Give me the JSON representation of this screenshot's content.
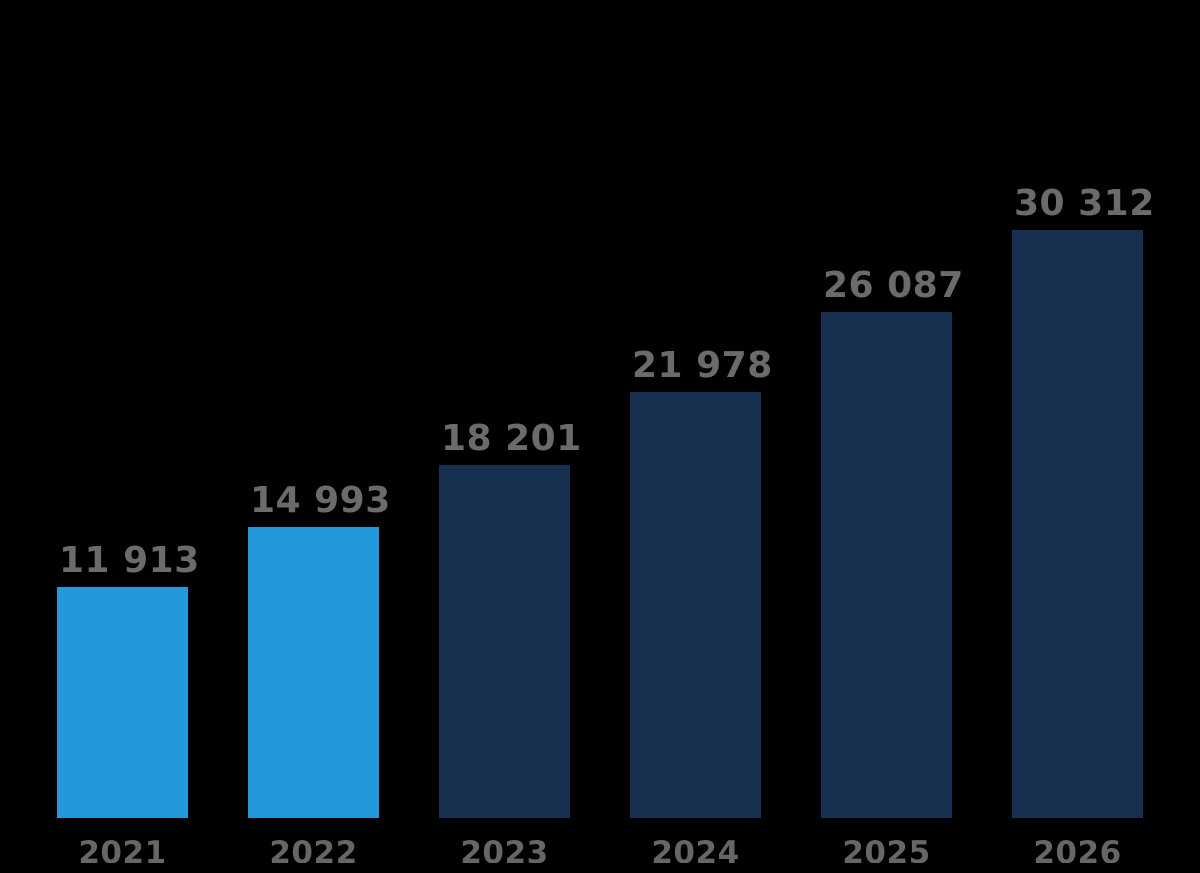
{
  "background_color": "#000000",
  "chart_data": {
    "type": "bar",
    "title": "",
    "xlabel": "",
    "ylabel": "",
    "categories": [
      "2021",
      "2022",
      "2023",
      "2024",
      "2025",
      "2026"
    ],
    "values": [
      11913,
      14993,
      18201,
      21978,
      26087,
      30312
    ],
    "value_labels": [
      "11 913",
      "14 993",
      "18 201",
      "21 978",
      "26 087",
      "30 312"
    ],
    "bar_colors": [
      "#2398DB",
      "#2398DB",
      "#17304F",
      "#17304F",
      "#17304F",
      "#17304F"
    ],
    "ylim": [
      0,
      30312
    ],
    "grid": false,
    "legend": false,
    "axes_visible": false,
    "value_label_color": "#6B6B6B",
    "tick_label_color": "#666666",
    "colors": {
      "light_blue": "#2398DB",
      "dark_navy": "#17304F",
      "label_gray": "#6B6B6B"
    }
  }
}
